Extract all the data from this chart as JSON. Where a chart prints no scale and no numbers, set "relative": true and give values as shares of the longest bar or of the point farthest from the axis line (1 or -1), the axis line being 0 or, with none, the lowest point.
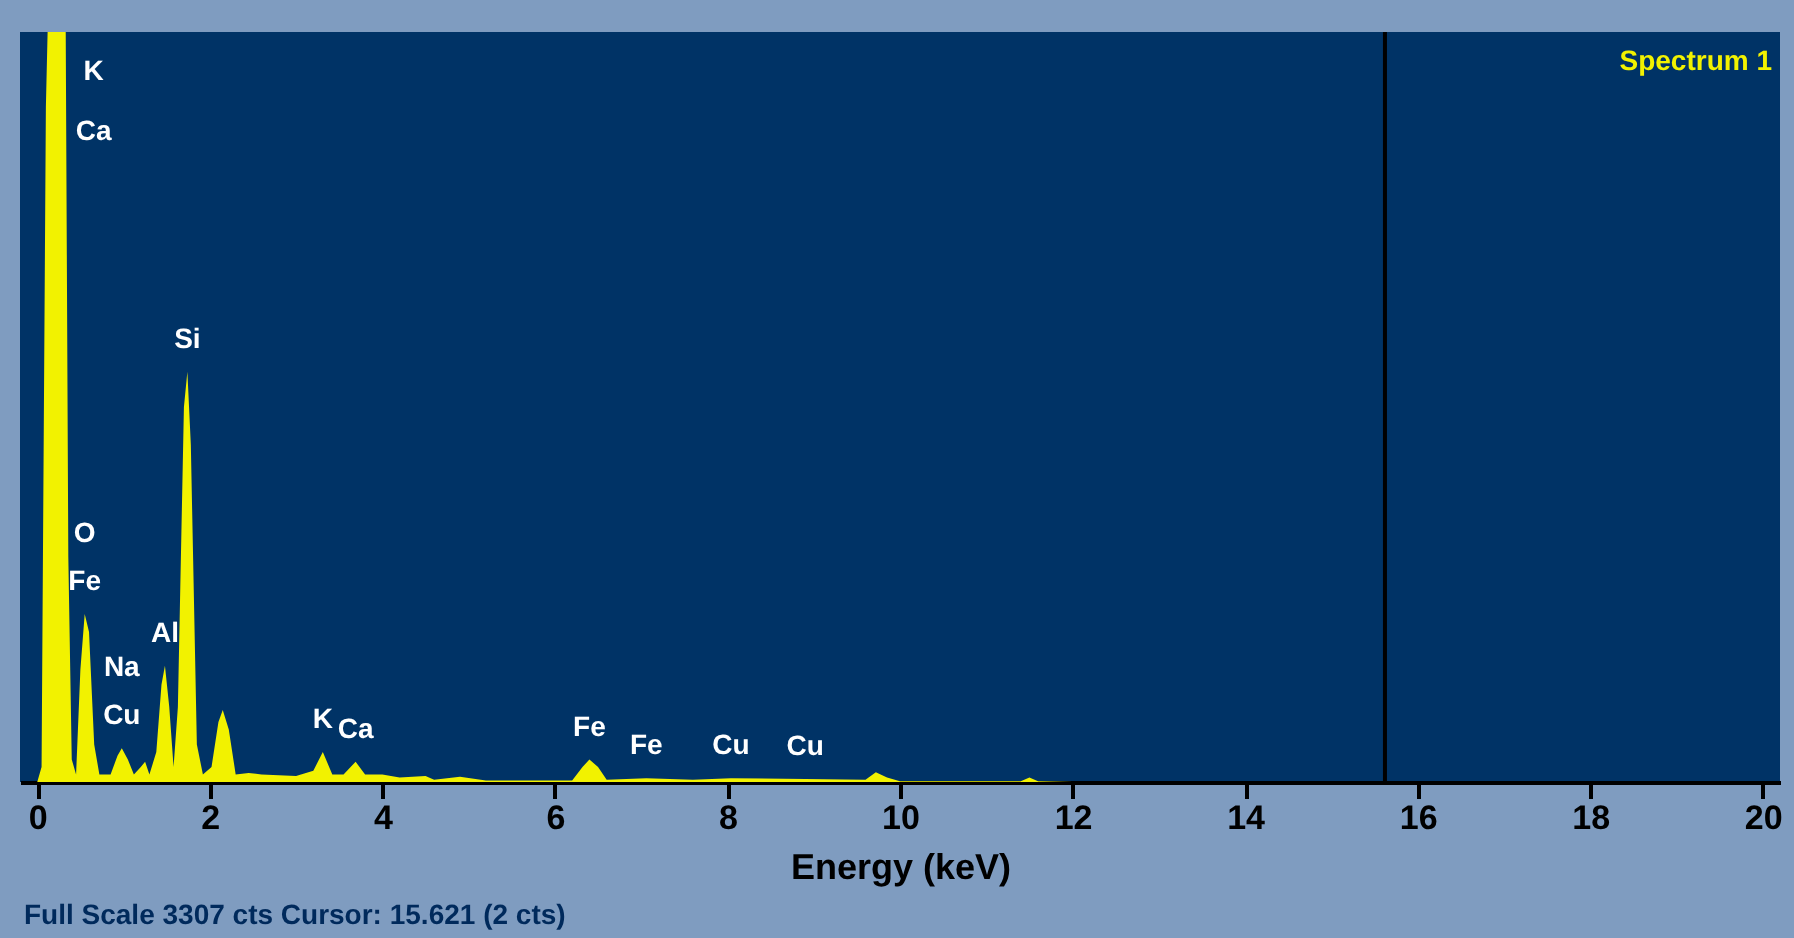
{
  "chart_data": {
    "type": "area",
    "relative": true,
    "xlabel": "Energy (keV)",
    "xlim": [
      -0.2,
      20.2
    ],
    "xticks": [
      0,
      2,
      4,
      6,
      8,
      10,
      12,
      14,
      16,
      18,
      20
    ],
    "grid": false,
    "legend": false,
    "series": [
      {
        "name": "Spectrum 1",
        "color": "#f2f200",
        "x": [
          0,
          0.05,
          0.1,
          0.12,
          0.33,
          0.36,
          0.4,
          0.45,
          0.5,
          0.55,
          0.6,
          0.66,
          0.72,
          0.85,
          0.93,
          0.98,
          1.05,
          1.12,
          1.2,
          1.25,
          1.3,
          1.38,
          1.44,
          1.48,
          1.53,
          1.58,
          1.63,
          1.7,
          1.74,
          1.78,
          1.85,
          1.92,
          2.02,
          2.1,
          2.15,
          2.22,
          2.3,
          2.45,
          2.6,
          3.0,
          3.2,
          3.31,
          3.42,
          3.55,
          3.69,
          3.8,
          4.0,
          4.2,
          4.5,
          4.6,
          4.9,
          5.2,
          6.2,
          6.32,
          6.4,
          6.5,
          6.6,
          7.06,
          7.6,
          8.04,
          8.9,
          9.6,
          9.72,
          9.85,
          10.0,
          11.4,
          11.5,
          11.6,
          12.0,
          20.0
        ],
        "values": [
          0,
          0.02,
          0.9,
          1,
          1,
          0.3,
          0.03,
          0.01,
          0.15,
          0.224,
          0.2,
          0.05,
          0.01,
          0.01,
          0.035,
          0.045,
          0.03,
          0.01,
          0.02,
          0.027,
          0.01,
          0.04,
          0.13,
          0.155,
          0.1,
          0.02,
          0.1,
          0.5,
          0.547,
          0.45,
          0.05,
          0.01,
          0.02,
          0.08,
          0.096,
          0.07,
          0.01,
          0.012,
          0.01,
          0.008,
          0.015,
          0.04,
          0.01,
          0.01,
          0.027,
          0.01,
          0.01,
          0.006,
          0.008,
          0.003,
          0.007,
          0.002,
          0.002,
          0.02,
          0.03,
          0.02,
          0.003,
          0.005,
          0.003,
          0.005,
          0.004,
          0.003,
          0.013,
          0.006,
          0.001,
          0.001,
          0.006,
          0.001,
          0,
          0
        ]
      }
    ],
    "ref_lines": [
      {
        "axis": "x",
        "value": 15.621,
        "color": "#000000"
      }
    ],
    "annotations": [
      {
        "text": "K",
        "x": 0.33,
        "y": 1
      },
      {
        "text": "Ca",
        "x": 0.33,
        "y": 1
      },
      {
        "text": "Si",
        "x": 1.74,
        "y": 0.547
      },
      {
        "text": "O",
        "x": 0.55,
        "y": 0.224
      },
      {
        "text": "Fe",
        "x": 0.55,
        "y": 0.224
      },
      {
        "text": "Na",
        "x": 0.98,
        "y": 0.045
      },
      {
        "text": "Cu",
        "x": 0.98,
        "y": 0.045
      },
      {
        "text": "Al",
        "x": 1.48,
        "y": 0.155
      },
      {
        "text": "K",
        "x": 3.31,
        "y": 0.04
      },
      {
        "text": "Ca",
        "x": 3.69,
        "y": 0.027
      },
      {
        "text": "Fe",
        "x": 6.4,
        "y": 0.03
      },
      {
        "text": "Fe",
        "x": 7.06,
        "y": 0.005
      },
      {
        "text": "Cu",
        "x": 8.04,
        "y": 0.005
      },
      {
        "text": "Cu",
        "x": 8.9,
        "y": 0.004
      },
      "Full Scale 3307 cts Cursor: 15.621 (2 cts)"
    ]
  }
}
